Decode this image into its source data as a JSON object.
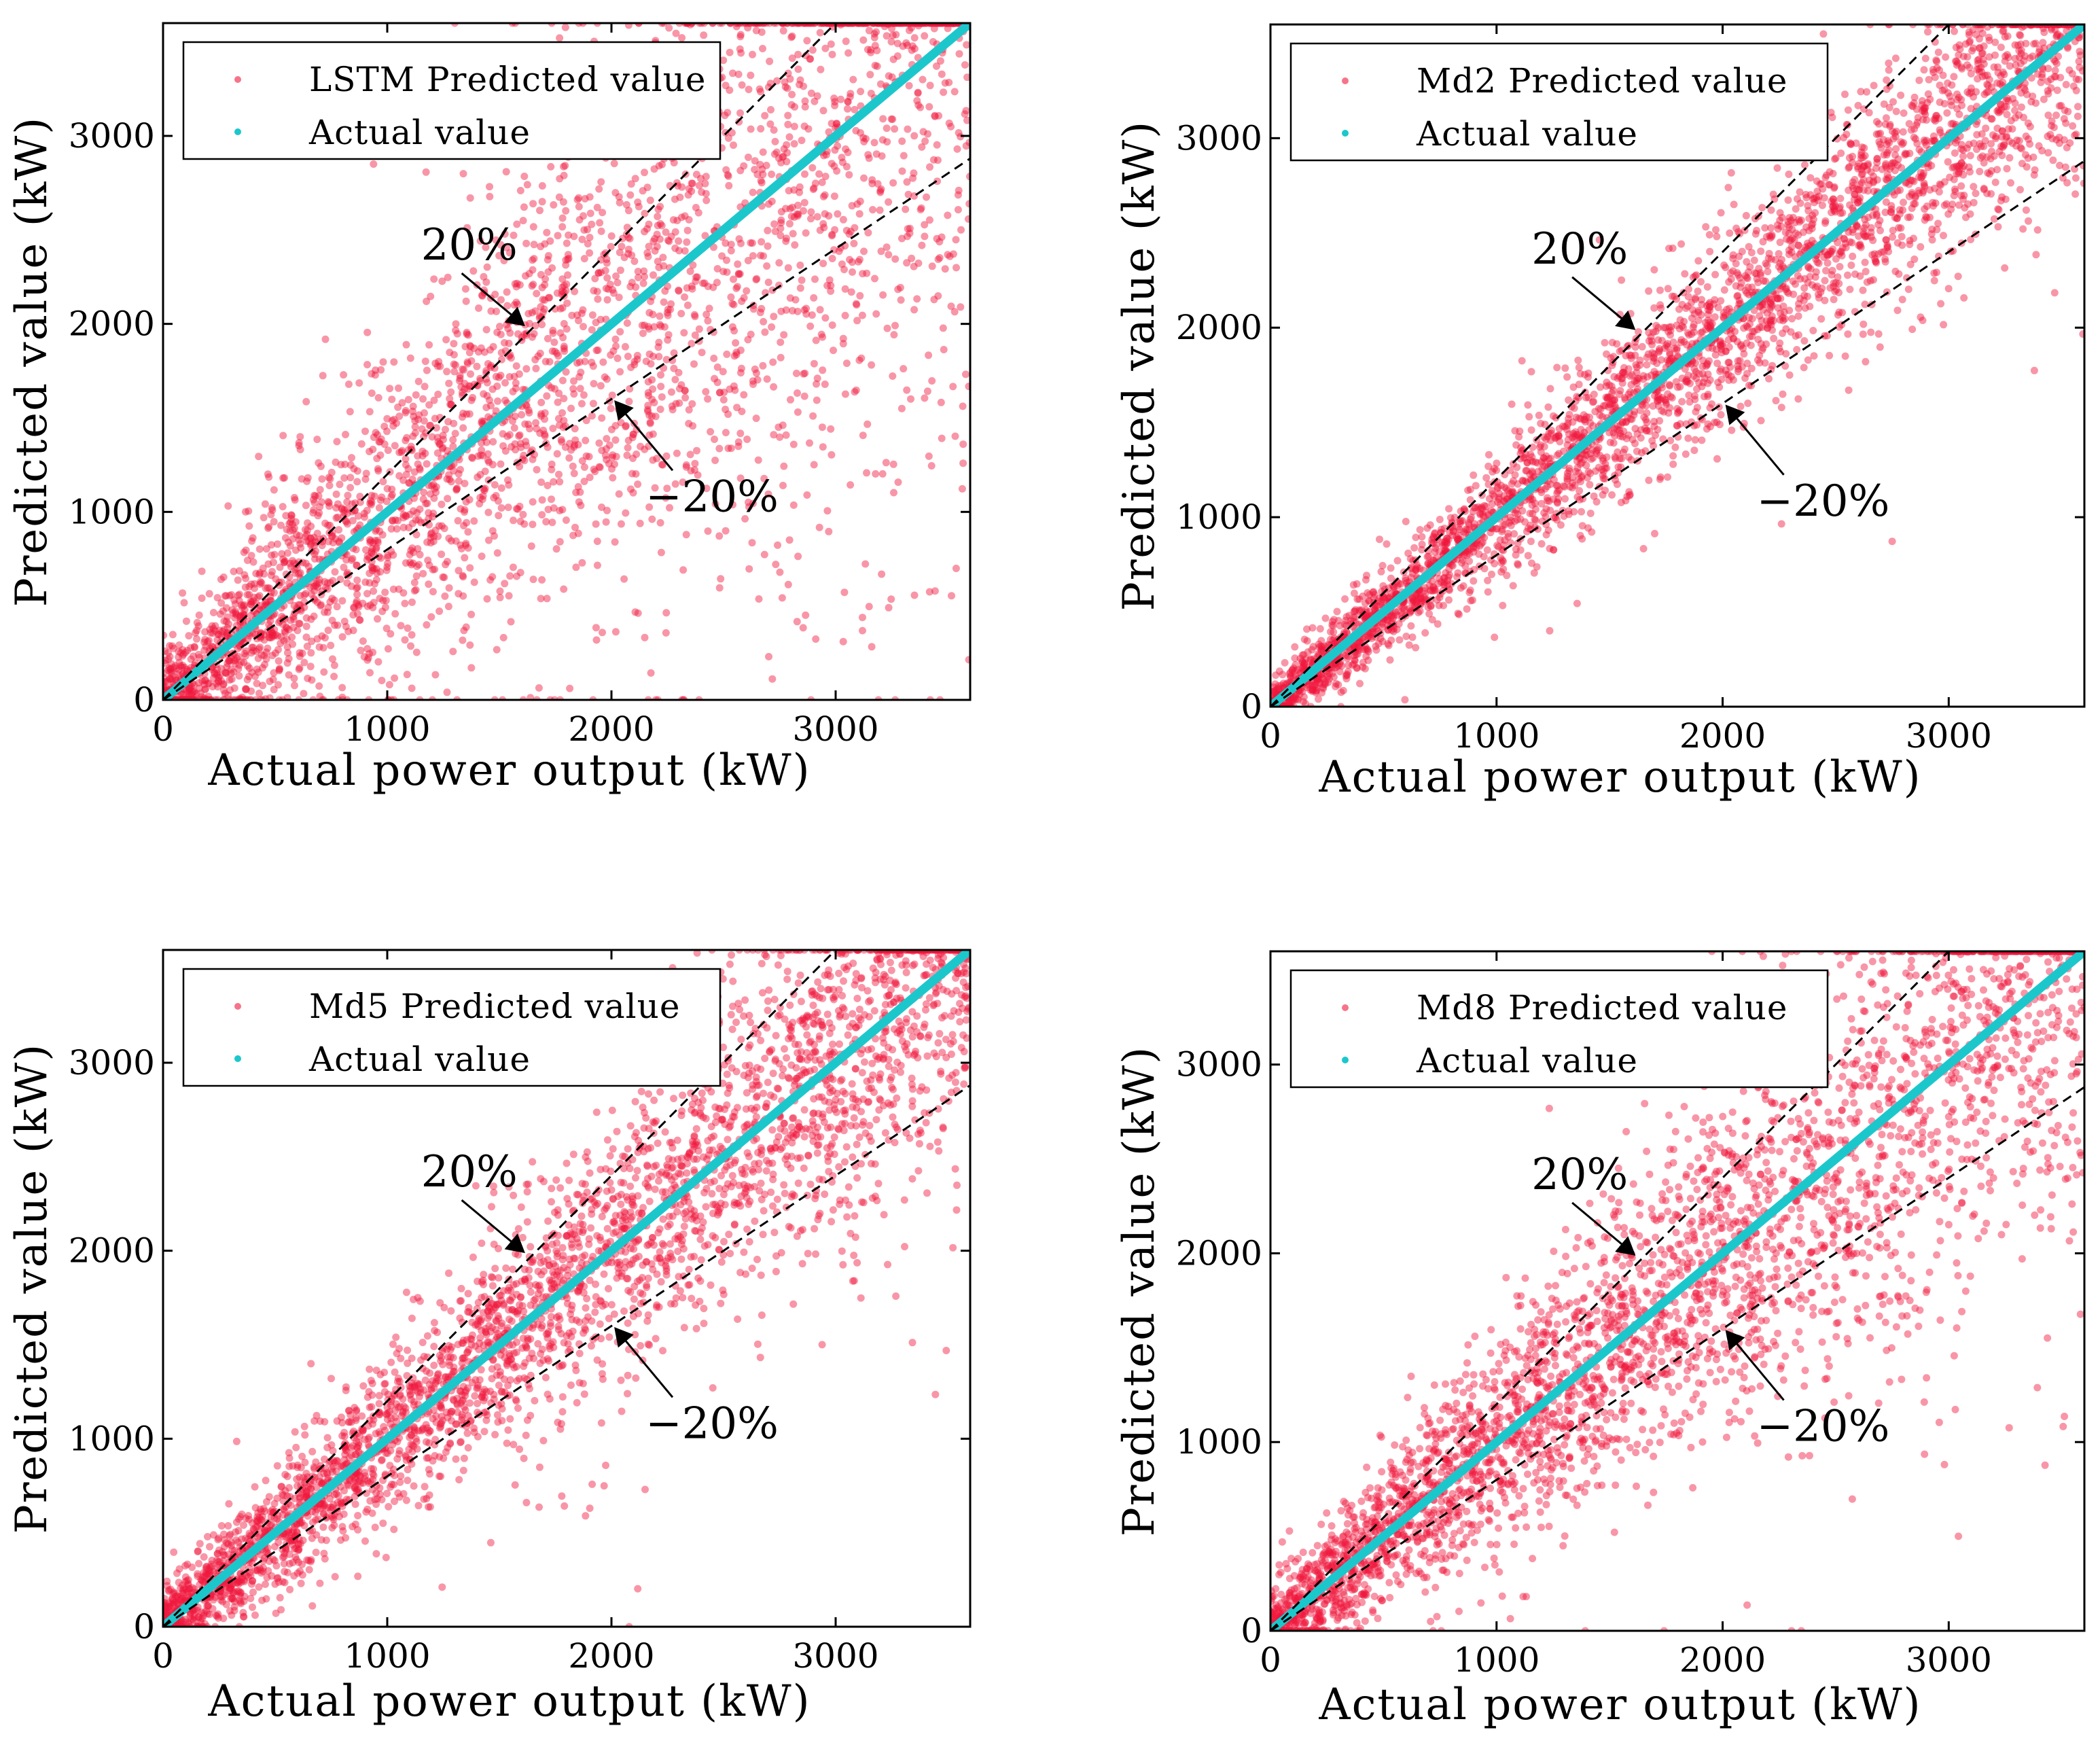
{
  "figure": {
    "layout": "2x2 grid of scatter plots",
    "colors": {
      "predicted_points": "#f0173c",
      "actual_line": "#1cc7cc",
      "band_lines": "#000000",
      "axes": "#000000",
      "background": "#ffffff"
    }
  },
  "chart_data": [
    {
      "type": "scatter",
      "model": "LSTM",
      "legend": {
        "predicted": "LSTM Predicted value",
        "actual": "Actual value",
        "placement": "top-left"
      },
      "xlabel": "Actual power output (kW)",
      "ylabel": "Predicted value (kW)",
      "xlim": [
        0,
        3600
      ],
      "ylim": [
        0,
        3600
      ],
      "xticks": [
        0,
        1000,
        2000,
        3000
      ],
      "yticks": [
        0,
        1000,
        2000,
        3000
      ],
      "tick_labels_x": [
        "0",
        "1000",
        "2000",
        "3000"
      ],
      "tick_labels_y": [
        "0",
        "1000",
        "2000",
        "3000"
      ],
      "series": [
        {
          "name": "Actual value",
          "kind": "line",
          "x": [
            0,
            3600
          ],
          "y": [
            0,
            3600
          ]
        },
        {
          "name": "+20% bound",
          "kind": "dashed-line",
          "x": [
            0,
            3000
          ],
          "y": [
            0,
            3600
          ]
        },
        {
          "name": "-20% bound",
          "kind": "dashed-line",
          "x": [
            0,
            3600
          ],
          "y": [
            0,
            2880
          ]
        },
        {
          "name": "LSTM Predicted value",
          "kind": "points",
          "point_count": 3500,
          "relative_spread": 0.3,
          "absolute_spread_kw": 120
        }
      ],
      "annotations": [
        {
          "text": "20%",
          "arrow_to": [
            1620,
            1980
          ]
        },
        {
          "text": "−20%",
          "arrow_to": [
            2000,
            1600
          ]
        }
      ]
    },
    {
      "type": "scatter",
      "model": "Md2",
      "legend": {
        "predicted": "Md2 Predicted value",
        "actual": "Actual value",
        "placement": "top-left"
      },
      "xlabel": "Actual power output (kW)",
      "ylabel": "Predicted value (kW)",
      "xlim": [
        0,
        3600
      ],
      "ylim": [
        0,
        3600
      ],
      "xticks": [
        0,
        1000,
        2000,
        3000
      ],
      "yticks": [
        0,
        1000,
        2000,
        3000
      ],
      "tick_labels_x": [
        "0",
        "1000",
        "2000",
        "3000"
      ],
      "tick_labels_y": [
        "0",
        "1000",
        "2000",
        "3000"
      ],
      "series": [
        {
          "name": "Actual value",
          "kind": "line",
          "x": [
            0,
            3600
          ],
          "y": [
            0,
            3600
          ]
        },
        {
          "name": "+20% bound",
          "kind": "dashed-line",
          "x": [
            0,
            3000
          ],
          "y": [
            0,
            3600
          ]
        },
        {
          "name": "-20% bound",
          "kind": "dashed-line",
          "x": [
            0,
            3600
          ],
          "y": [
            0,
            2880
          ]
        },
        {
          "name": "Md2 Predicted value",
          "kind": "points",
          "point_count": 3500,
          "relative_spread": 0.09,
          "absolute_spread_kw": 60
        }
      ],
      "annotations": [
        {
          "text": "20%",
          "arrow_to": [
            1620,
            1980
          ]
        },
        {
          "text": "−20%",
          "arrow_to": [
            2000,
            1600
          ]
        }
      ]
    },
    {
      "type": "scatter",
      "model": "Md5",
      "legend": {
        "predicted": "Md5 Predicted value",
        "actual": "Actual value",
        "placement": "top-left"
      },
      "xlabel": "Actual power output (kW)",
      "ylabel": "Predicted value (kW)",
      "xlim": [
        0,
        3600
      ],
      "ylim": [
        0,
        3600
      ],
      "xticks": [
        0,
        1000,
        2000,
        3000
      ],
      "yticks": [
        0,
        1000,
        2000,
        3000
      ],
      "tick_labels_x": [
        "0",
        "1000",
        "2000",
        "3000"
      ],
      "tick_labels_y": [
        "0",
        "1000",
        "2000",
        "3000"
      ],
      "series": [
        {
          "name": "Actual value",
          "kind": "line",
          "x": [
            0,
            3600
          ],
          "y": [
            0,
            3600
          ]
        },
        {
          "name": "+20% bound",
          "kind": "dashed-line",
          "x": [
            0,
            3000
          ],
          "y": [
            0,
            3600
          ]
        },
        {
          "name": "-20% bound",
          "kind": "dashed-line",
          "x": [
            0,
            3600
          ],
          "y": [
            0,
            2880
          ]
        },
        {
          "name": "Md5 Predicted value",
          "kind": "points",
          "point_count": 3500,
          "relative_spread": 0.13,
          "absolute_spread_kw": 80
        }
      ],
      "annotations": [
        {
          "text": "20%",
          "arrow_to": [
            1620,
            1980
          ]
        },
        {
          "text": "−20%",
          "arrow_to": [
            2000,
            1600
          ]
        }
      ]
    },
    {
      "type": "scatter",
      "model": "Md8",
      "legend": {
        "predicted": "Md8 Predicted value",
        "actual": "Actual value",
        "placement": "top-left"
      },
      "xlabel": "Actual power output (kW)",
      "ylabel": "Predicted value (kW)",
      "xlim": [
        0,
        3600
      ],
      "ylim": [
        0,
        3600
      ],
      "xticks": [
        0,
        1000,
        2000,
        3000
      ],
      "yticks": [
        0,
        1000,
        2000,
        3000
      ],
      "tick_labels_x": [
        "0",
        "1000",
        "2000",
        "3000"
      ],
      "tick_labels_y": [
        "0",
        "1000",
        "2000",
        "3000"
      ],
      "series": [
        {
          "name": "Actual value",
          "kind": "line",
          "x": [
            0,
            3600
          ],
          "y": [
            0,
            3600
          ]
        },
        {
          "name": "+20% bound",
          "kind": "dashed-line",
          "x": [
            0,
            3000
          ],
          "y": [
            0,
            3600
          ]
        },
        {
          "name": "-20% bound",
          "kind": "dashed-line",
          "x": [
            0,
            3600
          ],
          "y": [
            0,
            2880
          ]
        },
        {
          "name": "Md8 Predicted value",
          "kind": "points",
          "point_count": 3500,
          "relative_spread": 0.18,
          "absolute_spread_kw": 100
        }
      ],
      "annotations": [
        {
          "text": "20%",
          "arrow_to": [
            1620,
            1980
          ]
        },
        {
          "text": "−20%",
          "arrow_to": [
            2000,
            1600
          ]
        }
      ]
    }
  ]
}
